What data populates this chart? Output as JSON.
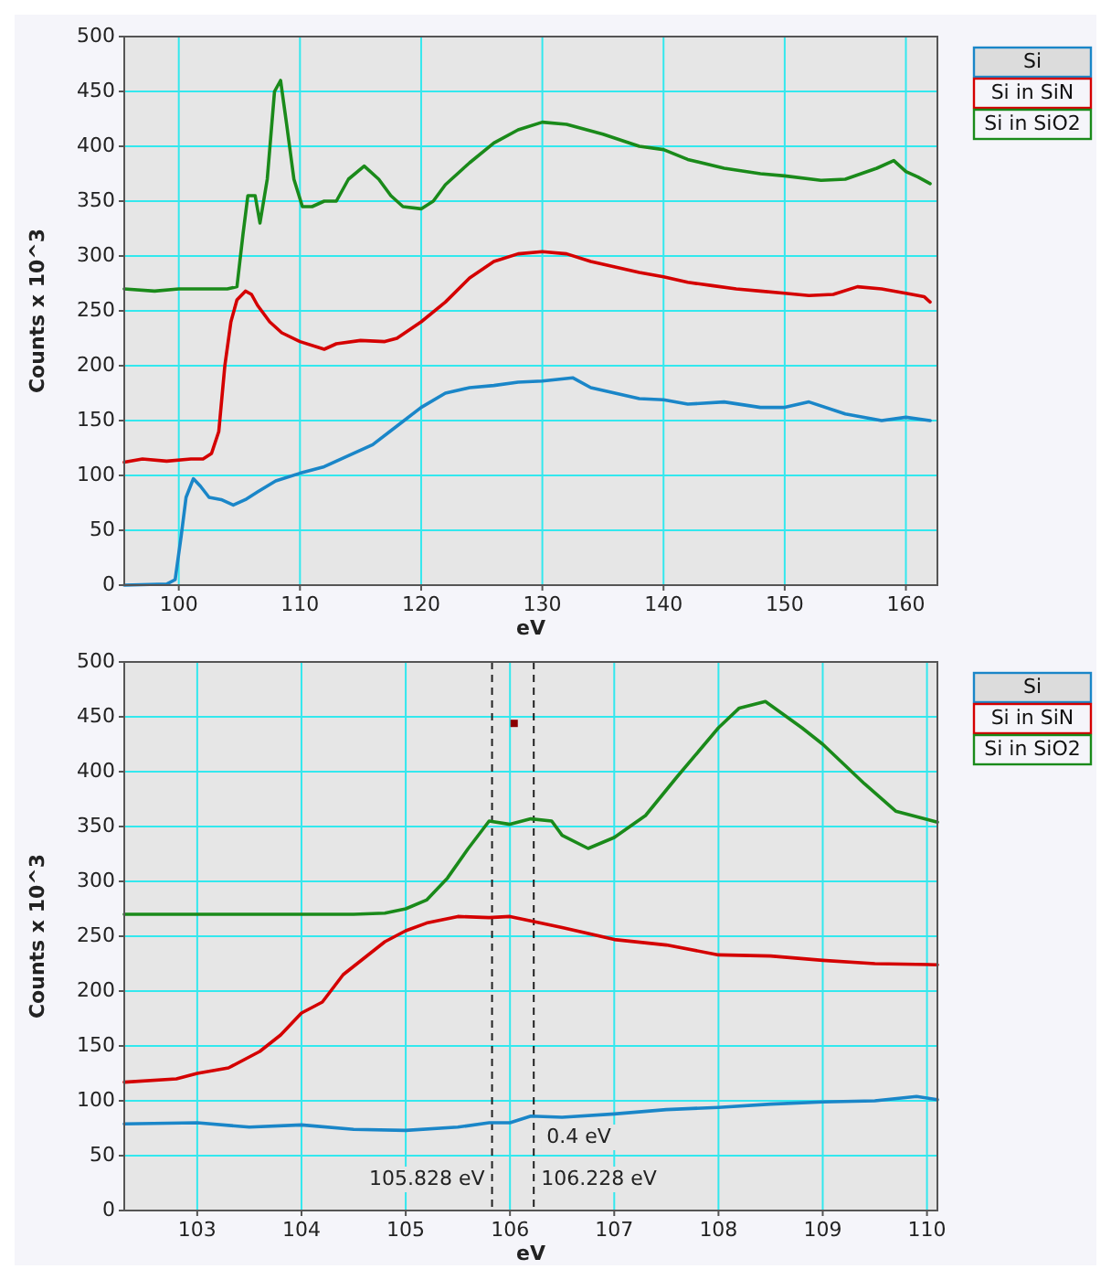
{
  "chart_data": [
    {
      "type": "line",
      "xlabel": "eV",
      "ylabel": "Counts x 10^3",
      "xlim": [
        95.5,
        162.6
      ],
      "ylim": [
        0,
        500
      ],
      "xticks": [
        100,
        110,
        120,
        130,
        140,
        150,
        160
      ],
      "yticks": [
        0,
        50,
        100,
        150,
        200,
        250,
        300,
        350,
        400,
        450,
        500
      ],
      "grid": true,
      "legend": "right",
      "series": [
        {
          "name": "Si",
          "color": "#1a86c8",
          "x": [
            95.5,
            99,
            99.7,
            100.2,
            100.6,
            101.2,
            101.8,
            102.5,
            103.5,
            104.5,
            105.5,
            106.5,
            108,
            110,
            112,
            114,
            116,
            118,
            120,
            122,
            124,
            126,
            128,
            130,
            132.5,
            134,
            136,
            138,
            140,
            142,
            145,
            148,
            150,
            152,
            155,
            158,
            160,
            162
          ],
          "values": [
            0,
            1,
            5,
            45,
            80,
            97,
            90,
            80,
            78,
            73,
            78,
            85,
            95,
            102,
            108,
            118,
            128,
            145,
            162,
            175,
            180,
            182,
            185,
            186,
            189,
            180,
            175,
            170,
            169,
            165,
            167,
            162,
            162,
            167,
            156,
            150,
            153,
            150
          ]
        },
        {
          "name": "Si in SiN",
          "color": "#d40000",
          "x": [
            95.5,
            97,
            99,
            101,
            102,
            102.7,
            103.3,
            103.8,
            104.3,
            104.8,
            105.5,
            106,
            106.5,
            107.5,
            108.5,
            110,
            112,
            113,
            115,
            117,
            118,
            120,
            122,
            124,
            126,
            128,
            130,
            132,
            134,
            136,
            138,
            140,
            142,
            144,
            146,
            148,
            150,
            152,
            154,
            156,
            158,
            160,
            161.5,
            162
          ],
          "values": [
            112,
            115,
            113,
            115,
            115,
            120,
            140,
            200,
            240,
            260,
            268,
            265,
            255,
            240,
            230,
            222,
            215,
            220,
            223,
            222,
            225,
            240,
            258,
            280,
            295,
            302,
            304,
            302,
            295,
            290,
            285,
            281,
            276,
            273,
            270,
            268,
            266,
            264,
            265,
            272,
            270,
            266,
            263,
            258
          ]
        },
        {
          "name": "Si in SiO2",
          "color": "#1a8a1a",
          "x": [
            95.5,
            98,
            100,
            104,
            104.8,
            105.3,
            105.7,
            106.3,
            106.7,
            107.3,
            107.9,
            108.4,
            108.9,
            109.5,
            110.2,
            111,
            112,
            113,
            114,
            115.3,
            116.5,
            117.5,
            118.5,
            120,
            121,
            122,
            124,
            126,
            128,
            130,
            132,
            135,
            138,
            140,
            142,
            145,
            148,
            150,
            153,
            155,
            157.6,
            159,
            160,
            161,
            162
          ],
          "values": [
            270,
            268,
            270,
            270,
            272,
            320,
            355,
            355,
            330,
            370,
            450,
            460,
            420,
            370,
            345,
            345,
            350,
            350,
            370,
            382,
            370,
            355,
            345,
            343,
            350,
            365,
            385,
            403,
            415,
            422,
            420,
            411,
            400,
            397,
            388,
            380,
            375,
            373,
            369,
            370,
            380,
            387,
            377,
            372,
            366
          ]
        }
      ]
    },
    {
      "type": "line",
      "xlabel": "eV",
      "ylabel": "Counts x 10^3",
      "xlim": [
        102.3,
        110.1
      ],
      "ylim": [
        0,
        500
      ],
      "xticks": [
        103,
        104,
        105,
        106,
        107,
        108,
        109,
        110
      ],
      "yticks": [
        0,
        50,
        100,
        150,
        200,
        250,
        300,
        350,
        400,
        450,
        500
      ],
      "grid": true,
      "legend": "right",
      "ref_lines": [
        {
          "axis": "x",
          "value": 105.828,
          "label": "105.828 eV",
          "line_style": "dashed",
          "color": "#222222"
        },
        {
          "axis": "x",
          "value": 106.228,
          "label": "106.228 eV",
          "line_style": "dashed",
          "color": "#222222"
        }
      ],
      "annotations": [
        "0.4 eV"
      ],
      "series": [
        {
          "name": "Si",
          "color": "#1a86c8",
          "x": [
            102.3,
            103,
            103.5,
            104,
            104.5,
            105,
            105.5,
            105.8,
            106,
            106.2,
            106.5,
            107,
            107.5,
            108,
            108.5,
            109,
            109.5,
            109.9,
            110.1
          ],
          "values": [
            79,
            80,
            76,
            78,
            74,
            73,
            76,
            80,
            80,
            86,
            85,
            88,
            92,
            94,
            97,
            99,
            100,
            104,
            101
          ]
        },
        {
          "name": "Si in SiN",
          "color": "#d40000",
          "x": [
            102.3,
            102.8,
            103,
            103.3,
            103.6,
            103.8,
            104,
            104.2,
            104.4,
            104.6,
            104.8,
            105,
            105.2,
            105.5,
            105.8,
            106,
            106.2,
            106.5,
            107,
            107.5,
            108,
            108.5,
            109,
            109.5,
            110.1
          ],
          "values": [
            117,
            120,
            125,
            130,
            145,
            160,
            180,
            190,
            215,
            230,
            245,
            255,
            262,
            268,
            267,
            268,
            264,
            258,
            247,
            242,
            233,
            232,
            228,
            225,
            224
          ]
        },
        {
          "name": "Si in SiO2",
          "color": "#1a8a1a",
          "x": [
            102.3,
            103,
            103.5,
            104,
            104.5,
            104.8,
            105,
            105.2,
            105.4,
            105.6,
            105.8,
            106,
            106.2,
            106.4,
            106.5,
            106.75,
            107,
            107.3,
            107.6,
            108,
            108.2,
            108.45,
            108.8,
            109,
            109.4,
            109.7,
            110.1
          ],
          "values": [
            270,
            270,
            270,
            270,
            270,
            271,
            275,
            283,
            303,
            330,
            355,
            352,
            357,
            355,
            342,
            330,
            340,
            360,
            395,
            440,
            458,
            464,
            440,
            425,
            389,
            364,
            354
          ]
        },
        {
          "type": "scatter",
          "color": "#8b0000",
          "marker": "square",
          "x": [
            106.04
          ],
          "values": [
            444
          ]
        }
      ]
    }
  ]
}
